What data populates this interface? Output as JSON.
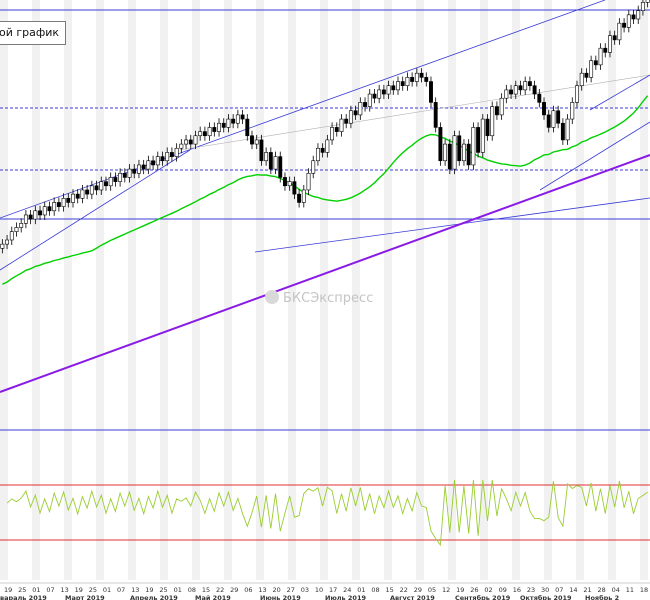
{
  "legend_label": "ой график",
  "watermark_text": "БКСЭкспресс",
  "colors": {
    "background": "#ffffff",
    "stripe": "#f1f1f1",
    "candle_up": "#ffffff",
    "candle_down": "#000000",
    "sma": "#00d000",
    "trendline": "#3b3bd8",
    "purple_trendline": "#8a1ae6",
    "level_line": "#3b3bd8",
    "oscillator": "#9acd32",
    "oscillator_bounds": "#e03030"
  },
  "chart_data": {
    "type": "candlestick",
    "title": "",
    "indicators": [
      "moving average (green)",
      "oscillator (lower panel)"
    ],
    "month_labels": [
      "вараль 2019",
      "Март 2019",
      "Апрель 2019",
      "Май 2019",
      "Июнь 2019",
      "Июль 2019",
      "Август 2019",
      "Сентябрь 2019",
      "Октябрь 2019",
      "Ноябрь 2"
    ],
    "day_ticks": [
      "19",
      "25",
      "01",
      "07",
      "13",
      "19",
      "25",
      "01",
      "07",
      "13",
      "19",
      "25",
      "01",
      "08",
      "15",
      "22",
      "29",
      "06",
      "13",
      "20",
      "27",
      "03",
      "10",
      "17",
      "24",
      "01",
      "08",
      "15",
      "22",
      "29",
      "05",
      "12",
      "19",
      "26",
      "02",
      "09",
      "16",
      "23",
      "30",
      "07",
      "14",
      "21",
      "28",
      "04",
      "11",
      "18"
    ],
    "series": [
      {
        "values": [
          100,
          101,
          103,
          104,
          105,
          107,
          106,
          108,
          107,
          109,
          108,
          110,
          109,
          111,
          110,
          112,
          111,
          113,
          112,
          114,
          113,
          115,
          114,
          116,
          115,
          117,
          116,
          118,
          117,
          119,
          118,
          120,
          119,
          121,
          120,
          122,
          121,
          123,
          124,
          125,
          124,
          126,
          127,
          126,
          128,
          127,
          129,
          128,
          130,
          129,
          131,
          130,
          126,
          124,
          125,
          120,
          122,
          118,
          121,
          116,
          114,
          115,
          112,
          110,
          113,
          117,
          120,
          123,
          122,
          125,
          128,
          127,
          130,
          129,
          132,
          131,
          134,
          133,
          136,
          135,
          137,
          136,
          138,
          137,
          139,
          138,
          140,
          139,
          141,
          140,
          139,
          134,
          128,
          120,
          124,
          118,
          126,
          120,
          124,
          119,
          128,
          122,
          130,
          126,
          133,
          131,
          135,
          137,
          136,
          138,
          137,
          139,
          138,
          136,
          134,
          131,
          128,
          132,
          129,
          125,
          130,
          134,
          138,
          141,
          140,
          144,
          143,
          147,
          146,
          150,
          149,
          153,
          152,
          155,
          154,
          156,
          158,
          160
        ]
      }
    ]
  }
}
